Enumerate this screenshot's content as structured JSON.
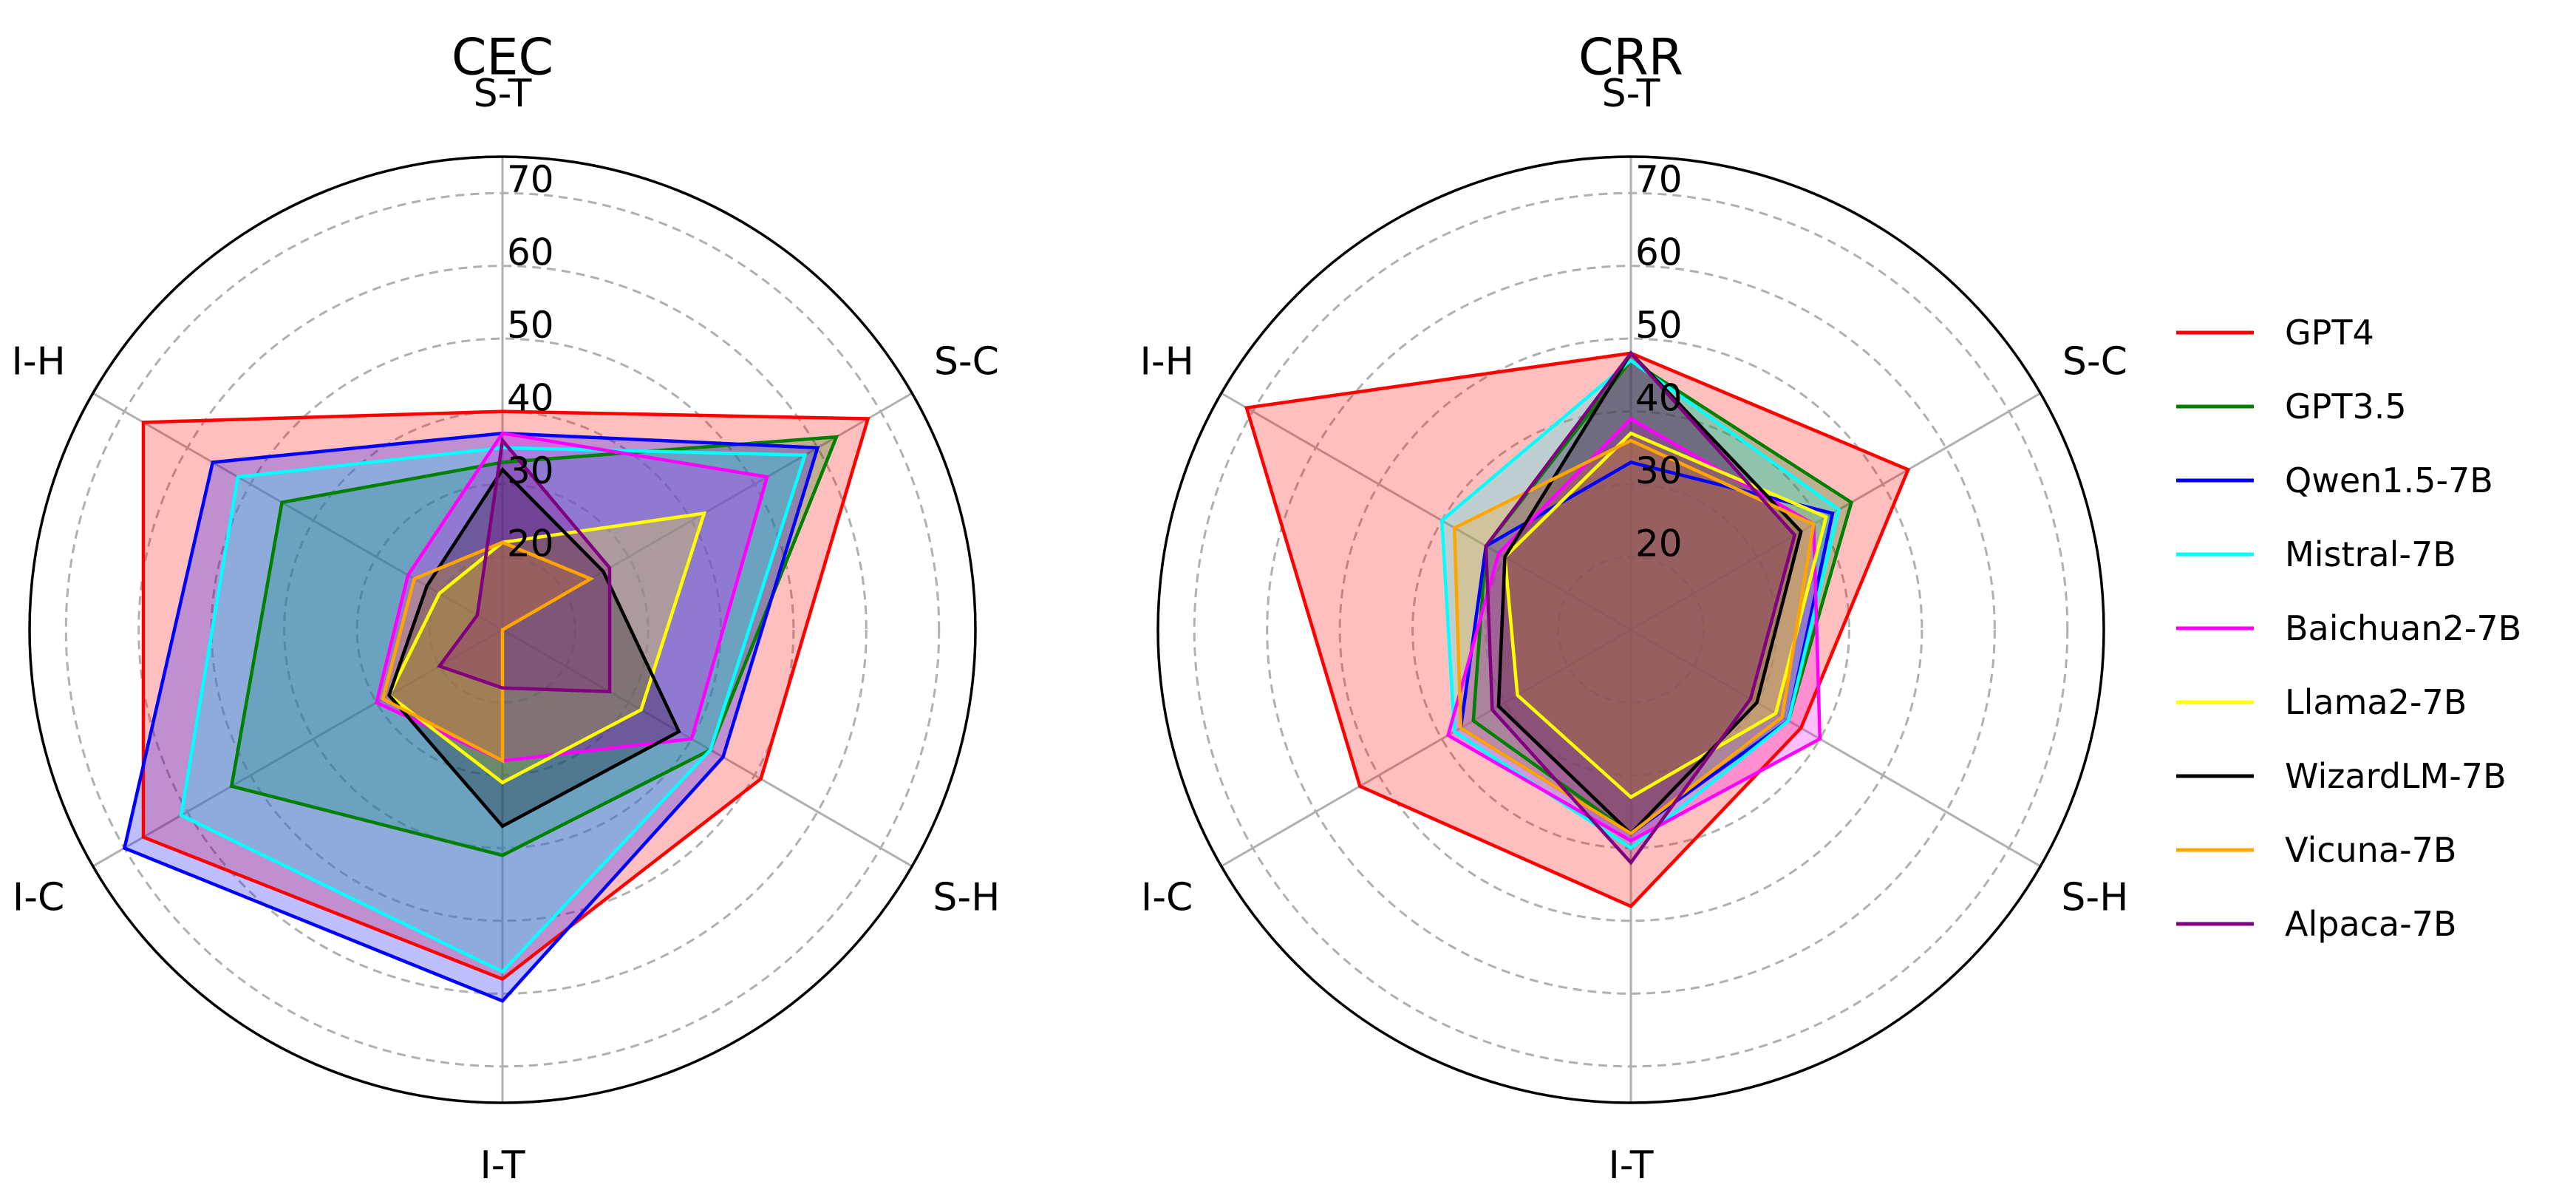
{
  "chart_data": [
    {
      "type": "radar",
      "title": "CEC",
      "axes": [
        "S-T",
        "S-C",
        "S-H",
        "I-T",
        "I-C",
        "I-H"
      ],
      "rticks": [
        20,
        30,
        40,
        50,
        60,
        70
      ],
      "rlim": [
        10,
        75
      ],
      "grid": true,
      "series": [
        {
          "name": "GPT4",
          "values": [
            40,
            68,
            51,
            58,
            67,
            67
          ]
        },
        {
          "name": "GPT3.5",
          "values": [
            33,
            63,
            43,
            41,
            53,
            45
          ]
        },
        {
          "name": "Qwen1.5-7B",
          "values": [
            37,
            60,
            45,
            61,
            70,
            56
          ]
        },
        {
          "name": "Mistral-7B",
          "values": [
            35,
            58,
            43,
            57,
            61,
            52
          ]
        },
        {
          "name": "Baichuan2-7B",
          "values": [
            37,
            52,
            40,
            28,
            30,
            25
          ]
        },
        {
          "name": "Llama2-7B",
          "values": [
            22,
            42,
            32,
            31,
            28,
            20
          ]
        },
        {
          "name": "WizardLM-7B",
          "values": [
            32,
            26,
            38,
            37,
            28,
            22
          ]
        },
        {
          "name": "Vicuna-7B",
          "values": [
            22,
            24,
            10,
            28,
            29,
            24
          ]
        },
        {
          "name": "Alpaca-7B",
          "values": [
            36,
            27,
            27,
            18,
            20,
            14
          ]
        }
      ]
    },
    {
      "type": "radar",
      "title": "CRR",
      "axes": [
        "S-T",
        "S-C",
        "S-H",
        "I-T",
        "I-C",
        "I-H"
      ],
      "rticks": [
        20,
        30,
        40,
        50,
        60,
        70
      ],
      "rlim": [
        10,
        75
      ],
      "grid": true,
      "series": [
        {
          "name": "GPT4",
          "values": [
            48,
            54,
            37,
            48,
            53,
            71
          ]
        },
        {
          "name": "GPT3.5",
          "values": [
            47,
            45,
            35,
            38,
            35,
            33
          ]
        },
        {
          "name": "Qwen1.5-7B",
          "values": [
            33,
            42,
            35,
            38,
            37,
            33
          ]
        },
        {
          "name": "Mistral-7B",
          "values": [
            47,
            43,
            35,
            40,
            38,
            40
          ]
        },
        {
          "name": "Baichuan2-7B",
          "values": [
            39,
            39,
            40,
            39,
            39,
            31
          ]
        },
        {
          "name": "Llama2-7B",
          "values": [
            37,
            41,
            33,
            33,
            28,
            30
          ]
        },
        {
          "name": "WizardLM-7B",
          "values": [
            48,
            37,
            30,
            38,
            31,
            30
          ]
        },
        {
          "name": "Vicuna-7B",
          "values": [
            36,
            39,
            34,
            38,
            37,
            38
          ]
        },
        {
          "name": "Alpaca-7B",
          "values": [
            48,
            36,
            29,
            42,
            32,
            33
          ]
        }
      ]
    }
  ],
  "legend": {
    "placement": "right",
    "entries": [
      {
        "label": "GPT4",
        "color": "#ff0000"
      },
      {
        "label": "GPT3.5",
        "color": "#008000"
      },
      {
        "label": "Qwen1.5-7B",
        "color": "#0000ff"
      },
      {
        "label": "Mistral-7B",
        "color": "#00ffff"
      },
      {
        "label": "Baichuan2-7B",
        "color": "#ff00ff"
      },
      {
        "label": "Llama2-7B",
        "color": "#ffff00"
      },
      {
        "label": "WizardLM-7B",
        "color": "#000000"
      },
      {
        "label": "Vicuna-7B",
        "color": "#ffa500"
      },
      {
        "label": "Alpaca-7B",
        "color": "#800080"
      }
    ]
  },
  "colors": {
    "GPT4": "#ff0000",
    "GPT3.5": "#008000",
    "Qwen1.5-7B": "#0000ff",
    "Mistral-7B": "#00ffff",
    "Baichuan2-7B": "#ff00ff",
    "Llama2-7B": "#ffff00",
    "WizardLM-7B": "#000000",
    "Vicuna-7B": "#ffa500",
    "Alpaca-7B": "#800080",
    "grid": "#b0b0b0",
    "spokes": "#b0b0b0",
    "frame": "#000000"
  }
}
